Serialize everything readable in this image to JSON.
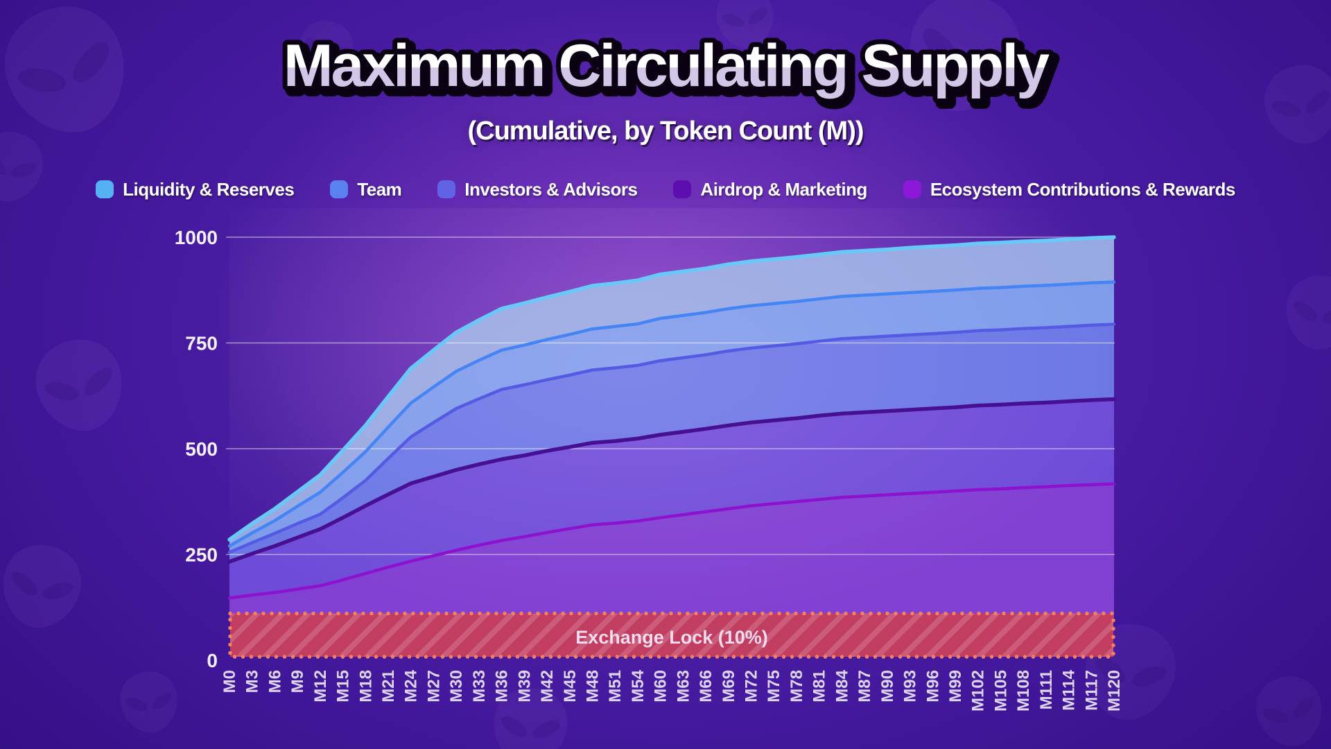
{
  "title": "Maximum Circulating Supply",
  "subtitle": "(Cumulative, by Token Count (M))",
  "theme": {
    "background_primary": "#41179a",
    "background_glow": "#cd64e8",
    "title_fill_top": "#ffffff",
    "title_fill_bottom": "#d2c7e6",
    "title_outline": "#0a0212",
    "axis_label_color": "#f6f2fd",
    "x_label_color": "#ddd4ef",
    "gridline_color": "rgba(255,255,255,0.5)"
  },
  "chart_data": {
    "type": "area",
    "stacked": true,
    "title": "Maximum Circulating Supply",
    "subtitle": "(Cumulative, by Token Count (M))",
    "xlabel": "",
    "ylabel": "",
    "ylim": [
      0,
      1000
    ],
    "yticks": [
      0,
      250,
      500,
      750,
      1000
    ],
    "grid": true,
    "legend_position": "top",
    "categories": [
      "M0",
      "M3",
      "M6",
      "M9",
      "M12",
      "M15",
      "M18",
      "M21",
      "M24",
      "M27",
      "M30",
      "M33",
      "M36",
      "M39",
      "M42",
      "M45",
      "M48",
      "M51",
      "M54",
      "M60",
      "M63",
      "M66",
      "M69",
      "M72",
      "M75",
      "M78",
      "M81",
      "M84",
      "M87",
      "M90",
      "M93",
      "M96",
      "M99",
      "M102",
      "M105",
      "M108",
      "M111",
      "M114",
      "M117",
      "M120"
    ],
    "stack_order_bottom_to_top": [
      "ecosystem",
      "airdrop",
      "investors",
      "team",
      "liquidity"
    ],
    "series": [
      {
        "key": "liquidity",
        "name": "Liquidity & Reserves",
        "color": "#56b1f2",
        "fill": "#97a9e2",
        "stroke": "#68c9f8",
        "values": [
          15,
          22,
          28,
          34,
          41,
          52,
          62,
          72,
          82,
          87,
          92,
          95,
          98,
          99,
          100,
          101,
          102,
          102,
          103,
          104,
          104,
          104,
          105,
          105,
          105,
          105,
          105,
          105,
          105,
          105,
          106,
          106,
          106,
          106,
          106,
          106,
          106,
          106,
          106,
          106
        ]
      },
      {
        "key": "team",
        "name": "Team",
        "color": "#5b80f0",
        "fill": "#7e9ceb",
        "stroke": "#4484f4",
        "values": [
          15,
          23,
          30,
          41,
          52,
          60,
          68,
          74,
          80,
          84,
          88,
          91,
          93,
          94,
          95,
          96,
          97,
          98,
          98,
          100,
          100,
          100,
          100,
          100,
          100,
          100,
          100,
          100,
          100,
          100,
          100,
          100,
          100,
          100,
          100,
          100,
          100,
          100,
          100,
          100
        ]
      },
      {
        "key": "investors",
        "name": "Investors & Advisors",
        "color": "#6063e6",
        "fill": "#6b77e6",
        "stroke": "#545ae2",
        "values": [
          22,
          26,
          30,
          33,
          35,
          47,
          60,
          85,
          110,
          128,
          145,
          155,
          165,
          167,
          168,
          170,
          172,
          173,
          173,
          175,
          175,
          175,
          176,
          176,
          176,
          176,
          176,
          177,
          177,
          177,
          177,
          177,
          177,
          177,
          177,
          177,
          177,
          177,
          177,
          177
        ]
      },
      {
        "key": "airdrop",
        "name": "Airdrop & Marketing",
        "color": "#5c0fae",
        "fill": "#6f4cd8",
        "stroke": "#471093",
        "values": [
          86,
          98,
          110,
          122,
          134,
          147,
          160,
          172,
          184,
          187,
          190,
          191,
          192,
          192,
          193,
          193,
          194,
          194,
          195,
          196,
          196,
          196,
          197,
          197,
          197,
          197,
          198,
          198,
          198,
          198,
          198,
          198,
          198,
          199,
          199,
          199,
          199,
          199,
          200,
          200
        ]
      },
      {
        "key": "ecosystem",
        "name": "Ecosystem Contributions & Rewards",
        "color": "#8c17d6",
        "fill": "#8040d2",
        "stroke": "#8d12cf",
        "values": [
          47,
          54,
          60,
          68,
          76,
          90,
          105,
          120,
          134,
          147,
          160,
          172,
          183,
          192,
          202,
          211,
          220,
          224,
          229,
          237,
          244,
          251,
          258,
          265,
          270,
          275,
          280,
          285,
          288,
          291,
          294,
          297,
          300,
          303,
          305,
          308,
          310,
          313,
          315,
          317
        ]
      }
    ],
    "lock_band": {
      "label": "Exchange Lock (10%)",
      "value": 100,
      "fill": "#c23e60",
      "stripe": "rgba(255,255,255,0.16)",
      "border": "#f5805f",
      "text_color": "#f0dcee"
    }
  }
}
